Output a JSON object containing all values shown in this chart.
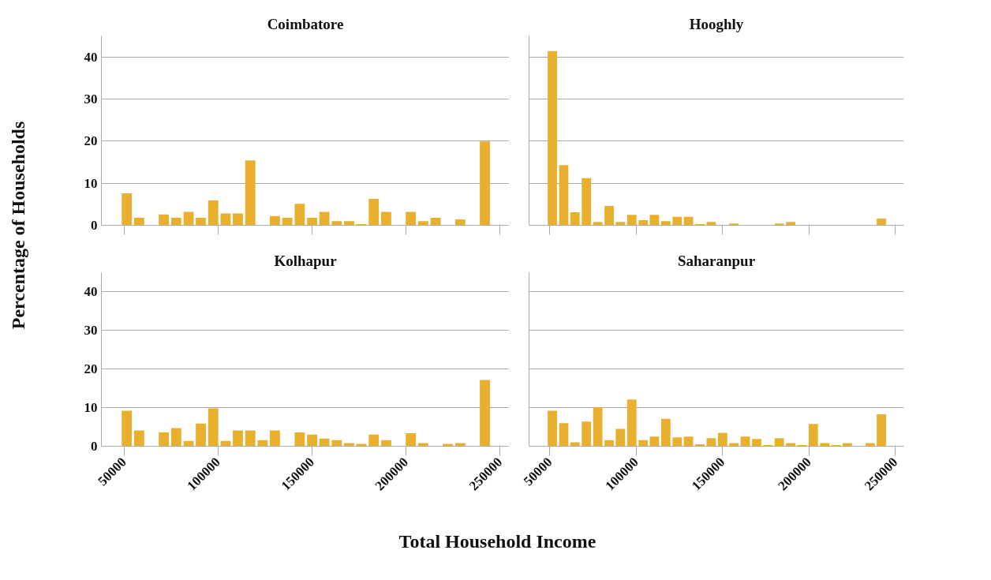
{
  "chart_data": [
    {
      "type": "bar",
      "title": "Coimbatore",
      "ylabel": "Percentage of Households",
      "color": "#e9b030",
      "grid": "y",
      "tick_labels": "y",
      "x": [
        51500,
        58100,
        64600,
        71200,
        77800,
        84400,
        90900,
        97500,
        104100,
        110600,
        117200,
        123800,
        130300,
        136900,
        143500,
        150100,
        156600,
        163200,
        169800,
        176300,
        182900,
        189500,
        196000,
        202600,
        209200,
        215800,
        222300,
        228900,
        235500,
        242000
      ],
      "values": [
        7.6,
        1.8,
        0,
        2.6,
        1.8,
        3.2,
        1.8,
        5.9,
        2.8,
        2.8,
        15.4,
        0,
        2.2,
        1.8,
        5.1,
        1.8,
        3.2,
        1.0,
        1.0,
        0.3,
        6.3,
        3.2,
        0,
        3.2,
        1.0,
        1.8,
        0,
        1.4,
        0,
        19.9
      ],
      "xlim": [
        38000,
        255000
      ],
      "ylim": [
        0,
        45
      ],
      "xticks": [
        50000,
        100000,
        150000,
        200000,
        250000
      ],
      "yticks": [
        0,
        10,
        20,
        30,
        40
      ]
    },
    {
      "type": "bar",
      "title": "Hooghly",
      "color": "#e9b030",
      "grid": "y",
      "tick_labels": false,
      "x": [
        51500,
        58100,
        64600,
        71200,
        77800,
        84400,
        90900,
        97500,
        104100,
        110600,
        117200,
        123800,
        130300,
        136900,
        143500,
        150100,
        156600,
        163200,
        169800,
        176300,
        182900,
        189500,
        196000,
        202600,
        209200,
        215800,
        222300,
        228900,
        235500,
        242000
      ],
      "values": [
        41.4,
        14.3,
        3.1,
        11.2,
        0.8,
        4.6,
        0.8,
        2.5,
        1.2,
        2.5,
        1.0,
        2.0,
        2.0,
        0.3,
        0.8,
        0,
        0.4,
        0,
        0,
        0,
        0.4,
        0.8,
        0,
        0,
        0,
        0,
        0,
        0,
        0,
        1.6
      ],
      "xlim": [
        38000,
        255000
      ],
      "ylim": [
        0,
        45
      ],
      "xticks": [
        50000,
        100000,
        150000,
        200000,
        250000
      ],
      "yticks": [
        0,
        10,
        20,
        30,
        40
      ]
    },
    {
      "type": "bar",
      "title": "Kolhapur",
      "xlabel": "Total Household Income",
      "color": "#e9b030",
      "grid": "y",
      "x": [
        51500,
        58100,
        64600,
        71200,
        77800,
        84400,
        90900,
        97500,
        104100,
        110600,
        117200,
        123800,
        130300,
        136900,
        143500,
        150100,
        156600,
        163200,
        169800,
        176300,
        182900,
        189500,
        196000,
        202600,
        209200,
        215800,
        222300,
        228900,
        235500,
        242000
      ],
      "values": [
        9.2,
        4.1,
        0,
        3.6,
        4.7,
        1.4,
        5.9,
        9.8,
        1.4,
        4.1,
        4.1,
        1.6,
        4.1,
        0,
        3.6,
        3.0,
        2.0,
        1.6,
        0.8,
        0.6,
        3.0,
        1.6,
        0,
        3.4,
        0.8,
        0,
        0.6,
        0.8,
        0,
        17.2
      ],
      "xlim": [
        38000,
        255000
      ],
      "ylim": [
        0,
        45
      ],
      "xticks": [
        50000,
        100000,
        150000,
        200000,
        250000
      ],
      "yticks": [
        0,
        10,
        20,
        30,
        40
      ]
    },
    {
      "type": "bar",
      "title": "Saharanpur",
      "color": "#e9b030",
      "grid": "y",
      "tick_labels": "x",
      "x": [
        51500,
        58100,
        64600,
        71200,
        77800,
        84400,
        90900,
        97500,
        104100,
        110600,
        117200,
        123800,
        130300,
        136900,
        143500,
        150100,
        156600,
        163200,
        169800,
        176300,
        182900,
        189500,
        196000,
        202600,
        209200,
        215800,
        222300,
        228900,
        235500,
        242000
      ],
      "values": [
        9.2,
        6.0,
        1.0,
        6.4,
        10.1,
        1.6,
        4.5,
        12.1,
        1.6,
        2.5,
        7.1,
        2.3,
        2.5,
        0.5,
        2.1,
        3.5,
        0.8,
        2.5,
        1.9,
        0.3,
        2.1,
        0.8,
        0.3,
        5.8,
        0.8,
        0.3,
        0.8,
        0,
        0.8,
        8.3
      ],
      "xlim": [
        38000,
        255000
      ],
      "ylim": [
        0,
        45
      ],
      "xticks": [
        50000,
        100000,
        150000,
        200000,
        250000
      ],
      "yticks": [
        0,
        10,
        20,
        30,
        40
      ]
    }
  ]
}
